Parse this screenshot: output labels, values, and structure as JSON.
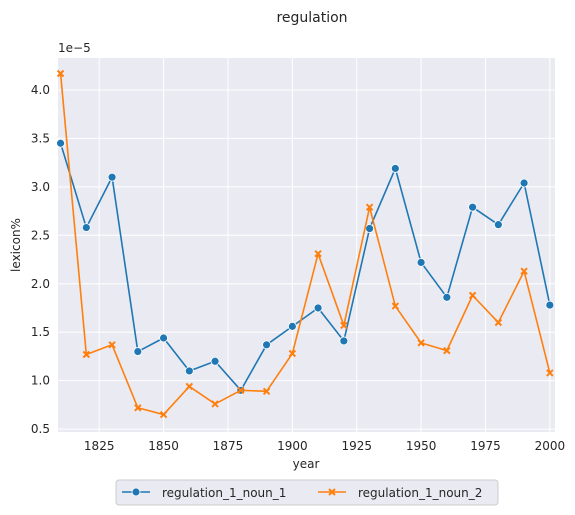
{
  "chart_data": {
    "type": "line",
    "title": "regulation",
    "xlabel": "year",
    "ylabel": "lexicon%",
    "y_offset_text": "1e−5",
    "xlim": [
      1809,
      2002
    ],
    "ylim": [
      0.47,
      4.33
    ],
    "x_ticks": [
      1825,
      1850,
      1875,
      1900,
      1925,
      1950,
      1975,
      2000
    ],
    "x_tick_labels": [
      "1825",
      "1850",
      "1875",
      "1900",
      "1925",
      "1950",
      "1975",
      "2000"
    ],
    "y_ticks": [
      0.5,
      1.0,
      1.5,
      2.0,
      2.5,
      3.0,
      3.5,
      4.0
    ],
    "y_tick_labels": [
      "0.5",
      "1.0",
      "1.5",
      "2.0",
      "2.5",
      "3.0",
      "3.5",
      "4.0"
    ],
    "grid": true,
    "legend_position": "bottom-center",
    "x": [
      1810,
      1820,
      1830,
      1840,
      1850,
      1860,
      1870,
      1880,
      1890,
      1900,
      1910,
      1920,
      1930,
      1940,
      1950,
      1960,
      1970,
      1980,
      1990,
      2000
    ],
    "series": [
      {
        "name": "regulation_1_noun_1",
        "color": "#1f77b4",
        "marker": "circle",
        "values": [
          3.45,
          2.58,
          3.1,
          1.3,
          1.44,
          1.1,
          1.2,
          0.9,
          1.37,
          1.56,
          1.75,
          1.41,
          2.57,
          3.19,
          2.22,
          1.86,
          2.79,
          2.61,
          3.04,
          1.78
        ]
      },
      {
        "name": "regulation_1_noun_2",
        "color": "#ff7f0e",
        "marker": "x",
        "values": [
          4.17,
          1.27,
          1.37,
          0.72,
          0.65,
          0.94,
          0.76,
          0.9,
          0.89,
          1.28,
          2.31,
          1.57,
          2.79,
          1.77,
          1.39,
          1.31,
          1.88,
          1.6,
          2.13,
          1.08
        ]
      }
    ]
  }
}
